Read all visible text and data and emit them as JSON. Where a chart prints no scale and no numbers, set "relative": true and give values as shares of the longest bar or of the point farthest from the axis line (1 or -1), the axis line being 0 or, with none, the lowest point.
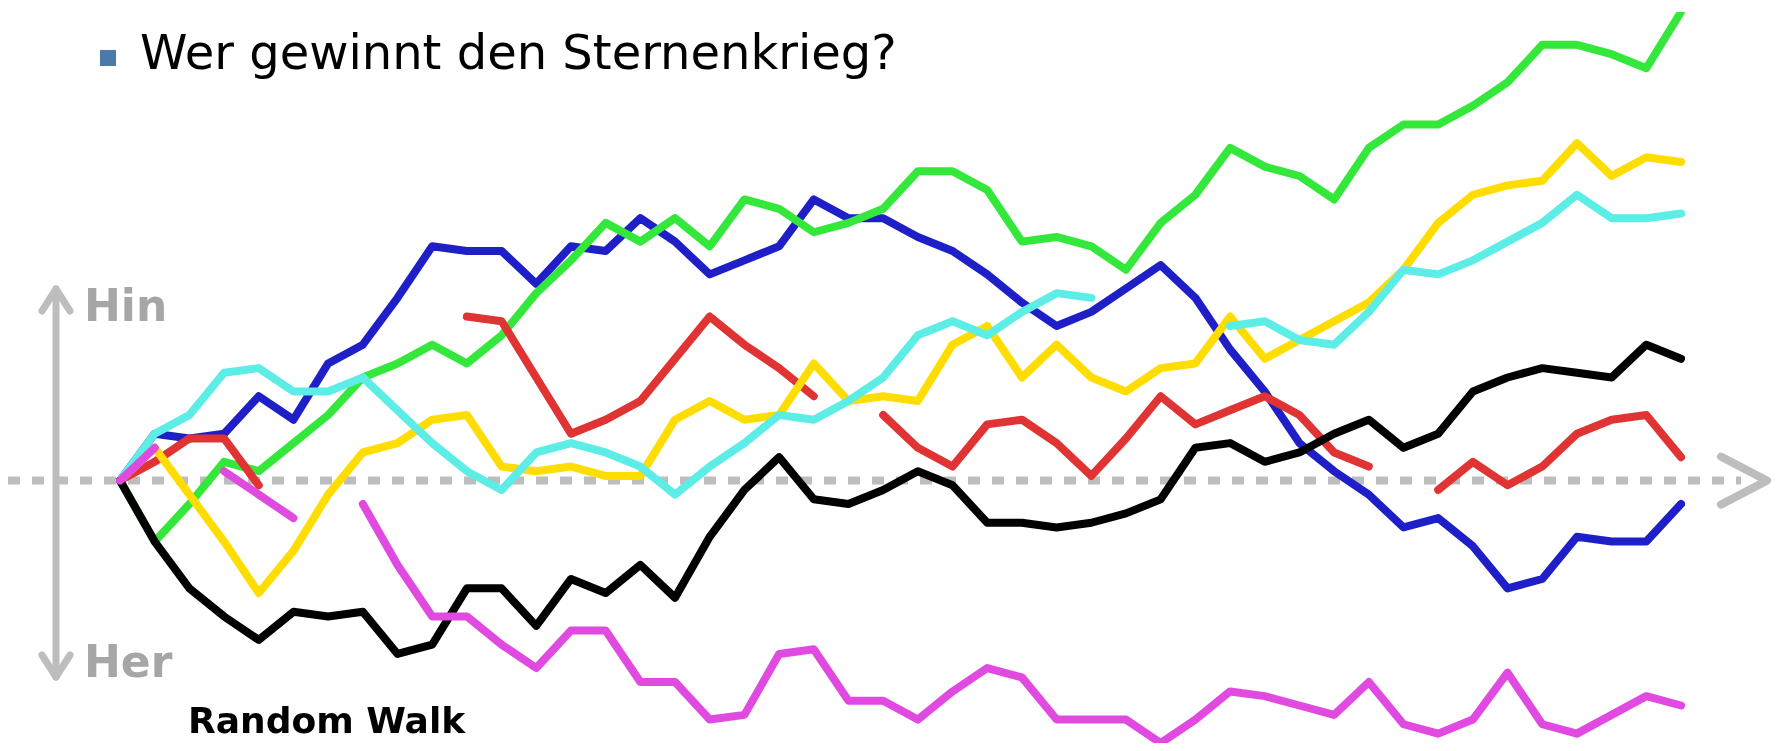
{
  "chart_data": {
    "type": "line",
    "title": "Wer gewinnt den Sternenkrieg?",
    "relative": true,
    "annotations": [
      "Hin",
      "Her",
      "Random Walk"
    ],
    "ref_lines": [
      {
        "axis": "y",
        "value": 0,
        "color": "#bdbdbd",
        "line_style": "dotted"
      }
    ],
    "categories": [
      null,
      null,
      null,
      null,
      null,
      null,
      null,
      null,
      null,
      null,
      null,
      null,
      null,
      null,
      null,
      null,
      null,
      null,
      null,
      null,
      null,
      null,
      null,
      null,
      null,
      null,
      null,
      null,
      null,
      null,
      null,
      null,
      null,
      null,
      null,
      null,
      null,
      null,
      null,
      null,
      null,
      null,
      null,
      null,
      null,
      null
    ],
    "series": [
      {
        "color": "#e04ae0",
        "values": [
          0,
          0.07,
          null,
          0.02,
          -0.03,
          -0.08,
          null,
          -0.05,
          -0.18,
          -0.29,
          -0.29,
          -0.35,
          -0.4,
          -0.32,
          -0.32,
          -0.43,
          -0.43,
          -0.51,
          -0.5,
          -0.37,
          -0.36,
          -0.47,
          -0.47,
          -0.51,
          -0.45,
          -0.4,
          -0.42,
          -0.51,
          -0.51,
          -0.51,
          -0.56,
          -0.51,
          -0.45,
          -0.46,
          -0.48,
          -0.5,
          -0.43,
          -0.52,
          -0.54,
          -0.51,
          -0.41,
          -0.52,
          -0.54,
          -0.5,
          -0.46,
          -0.48
        ]
      },
      {
        "color": "#000000",
        "values": [
          0,
          -0.13,
          -0.23,
          -0.29,
          -0.34,
          -0.28,
          -0.29,
          -0.28,
          -0.37,
          -0.35,
          -0.23,
          -0.23,
          -0.31,
          -0.21,
          -0.24,
          -0.18,
          -0.25,
          -0.12,
          -0.02,
          0.05,
          -0.04,
          -0.05,
          -0.02,
          0.02,
          -0.01,
          -0.09,
          -0.09,
          -0.1,
          -0.09,
          -0.07,
          -0.04,
          0.07,
          0.08,
          0.04,
          0.06,
          0.1,
          0.13,
          0.07,
          0.1,
          0.19,
          0.22,
          0.24,
          0.23,
          0.22,
          0.29,
          0.26
        ]
      },
      {
        "color": "#5ceee6",
        "values": [
          0,
          0.1,
          0.14,
          0.23,
          0.24,
          0.19,
          0.19,
          0.22,
          0.15,
          0.08,
          0.02,
          -0.02,
          0.06,
          0.08,
          0.06,
          0.03,
          -0.03,
          0.03,
          0.08,
          0.14,
          0.13,
          0.17,
          0.22,
          0.31,
          0.34,
          0.31,
          0.36,
          0.4,
          0.39,
          null,
          null,
          null,
          0.33,
          0.34,
          0.3,
          0.29,
          0.36,
          0.45,
          0.44,
          0.47,
          0.51,
          0.55,
          0.61,
          0.56,
          0.56,
          0.57
        ]
      },
      {
        "color": "#ffdd00",
        "values": [
          0,
          0.07,
          -0.03,
          -0.13,
          -0.24,
          -0.15,
          -0.03,
          0.06,
          0.08,
          0.13,
          0.14,
          0.03,
          0.02,
          0.03,
          0.01,
          0.01,
          0.13,
          0.17,
          0.13,
          0.14,
          0.25,
          0.17,
          0.18,
          0.17,
          0.29,
          0.33,
          0.22,
          0.29,
          0.22,
          0.19,
          0.24,
          0.25,
          0.35,
          0.26,
          0.3,
          0.34,
          0.38,
          0.45,
          0.55,
          0.61,
          0.63,
          0.64,
          0.72,
          0.65,
          0.69,
          0.68
        ]
      },
      {
        "color": "#e03434",
        "values": [
          0,
          0.04,
          0.09,
          0.09,
          -0.01,
          null,
          null,
          null,
          null,
          null,
          0.35,
          0.34,
          0.22,
          0.1,
          0.13,
          0.17,
          0.26,
          0.35,
          0.29,
          0.24,
          0.18,
          null,
          0.14,
          0.07,
          0.03,
          0.12,
          0.13,
          0.08,
          0.01,
          0.09,
          0.18,
          0.12,
          0.15,
          0.18,
          0.14,
          0.06,
          0.03,
          null,
          -0.02,
          0.04,
          -0.01,
          0.03,
          0.1,
          0.13,
          0.14,
          0.05
        ]
      },
      {
        "color": "#33e83a",
        "values": [
          0,
          -0.13,
          -0.05,
          0.04,
          0.02,
          0.08,
          0.14,
          0.22,
          0.25,
          0.29,
          0.25,
          0.31,
          0.4,
          0.47,
          0.55,
          0.51,
          0.56,
          0.5,
          0.6,
          0.58,
          0.53,
          0.55,
          0.58,
          0.66,
          0.66,
          0.62,
          0.51,
          0.52,
          0.5,
          0.45,
          0.55,
          0.61,
          0.71,
          0.67,
          0.65,
          0.6,
          0.71,
          0.76,
          0.76,
          0.8,
          0.85,
          0.93,
          0.93,
          0.91,
          0.88,
          1
        ]
      },
      {
        "color": "#1f1fc8",
        "values": [
          0,
          0.1,
          0.09,
          0.1,
          0.18,
          0.13,
          0.25,
          0.29,
          0.39,
          0.5,
          0.49,
          0.49,
          0.42,
          0.5,
          0.49,
          0.56,
          0.51,
          0.44,
          0.47,
          0.5,
          0.6,
          0.56,
          0.56,
          0.52,
          0.49,
          0.44,
          0.38,
          0.33,
          0.36,
          0.41,
          0.46,
          0.39,
          0.28,
          0.19,
          0.08,
          0.02,
          -0.03,
          -0.1,
          -0.08,
          -0.14,
          -0.23,
          -0.21,
          -0.12,
          -0.13,
          -0.13,
          -0.05
        ]
      }
    ]
  }
}
